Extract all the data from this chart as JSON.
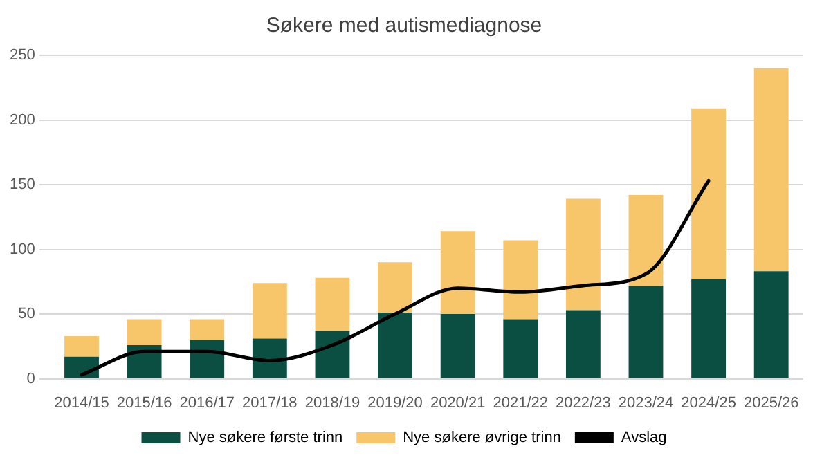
{
  "chart_data": {
    "type": "bar",
    "title": "Søkere med autismediagnose",
    "stacked": true,
    "categories": [
      "2014/15",
      "2015/16",
      "2016/17",
      "2017/18",
      "2018/19",
      "2019/20",
      "2020/21",
      "2021/22",
      "2022/23",
      "2023/24",
      "2024/25",
      "2025/26"
    ],
    "series": [
      {
        "name": "Nye søkere første trinn",
        "color": "#0b4f42",
        "values": [
          17,
          26,
          30,
          31,
          37,
          51,
          50,
          46,
          53,
          72,
          77,
          83
        ]
      },
      {
        "name": "Nye søkere øvrige trinn",
        "color": "#f8c66a",
        "values": [
          16,
          20,
          16,
          43,
          41,
          39,
          64,
          61,
          86,
          70,
          132,
          157
        ]
      },
      {
        "name": "Avslag",
        "type": "line",
        "color": "#000000",
        "values": [
          3,
          21,
          21,
          14,
          26,
          50,
          70,
          67,
          72,
          81,
          153,
          null
        ]
      }
    ],
    "ylim": [
      0,
      250
    ],
    "yticks": [
      0,
      50,
      100,
      150,
      200,
      250
    ],
    "grid": "y",
    "legend": "bottom",
    "marker": "none"
  }
}
